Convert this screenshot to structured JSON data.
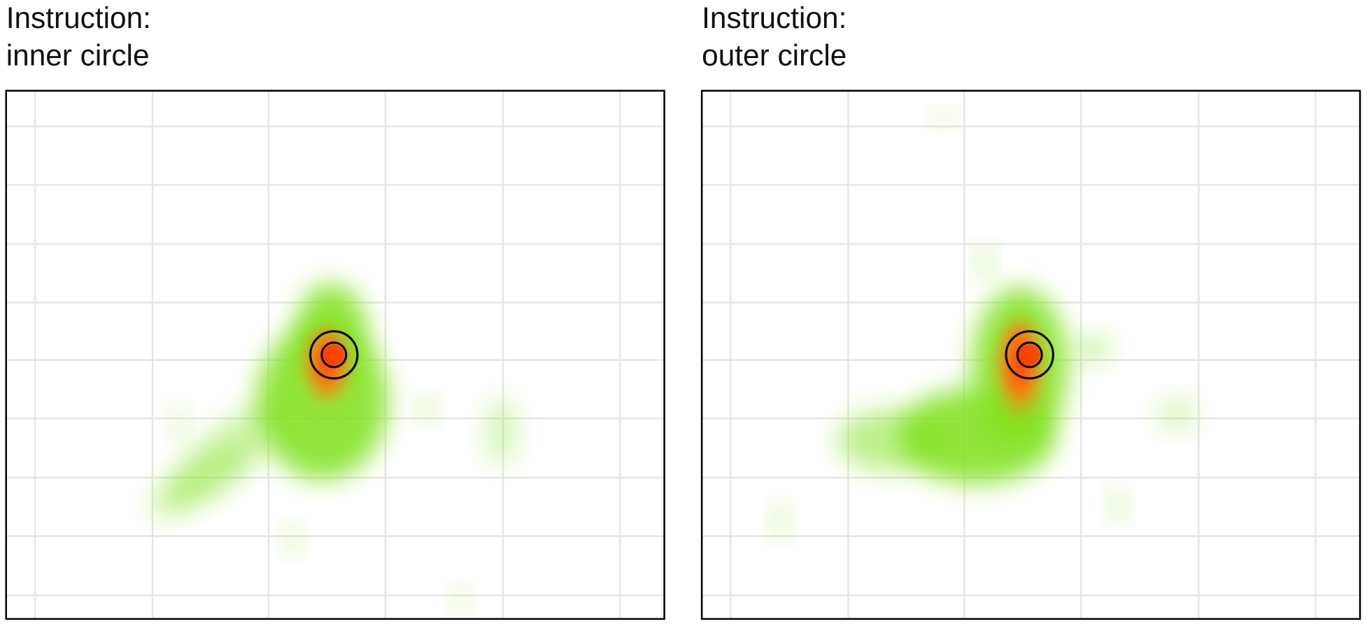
{
  "panels": [
    {
      "title_lines": [
        "Instruction:",
        "inner circle"
      ]
    },
    {
      "title_lines": [
        "Instruction:",
        "outer circle"
      ]
    }
  ]
}
